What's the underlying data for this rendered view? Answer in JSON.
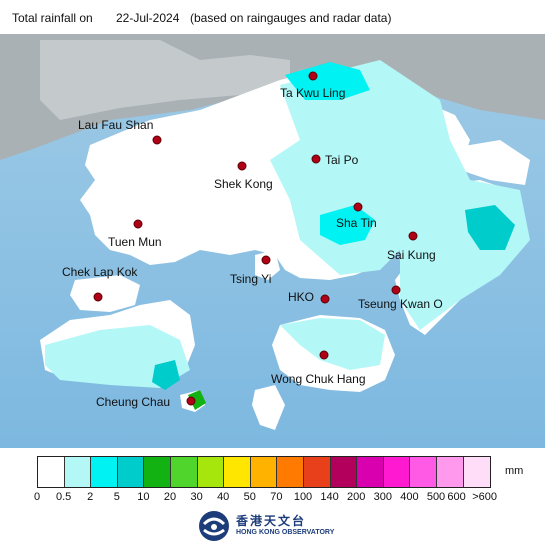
{
  "header": {
    "title": "Total rainfall on",
    "date": "22-Jul-2024",
    "note": "(based on raingauges and radar data)"
  },
  "stations": [
    {
      "name": "Ta Kwu Ling"
    },
    {
      "name": "Lau Fau Shan"
    },
    {
      "name": "Tai Po"
    },
    {
      "name": "Shek Kong"
    },
    {
      "name": "Sha Tin"
    },
    {
      "name": "Tuen Mun"
    },
    {
      "name": "Sai Kung"
    },
    {
      "name": "Tsing Yi"
    },
    {
      "name": "Chek Lap Kok"
    },
    {
      "name": "HKO"
    },
    {
      "name": "Tseung Kwan O"
    },
    {
      "name": "Wong Chuk Hang"
    },
    {
      "name": "Cheung Chau"
    }
  ],
  "legend": {
    "unit": "mm",
    "colors": [
      "#ffffff",
      "#b3f7f7",
      "#00f2f2",
      "#00cccc",
      "#13b213",
      "#4fd52b",
      "#a6e60d",
      "#ffe600",
      "#ffb300",
      "#ff7a00",
      "#e8401a",
      "#b3005c",
      "#d900b0",
      "#ff19d0",
      "#ff5ae6",
      "#ff99ee",
      "#ffdcf8"
    ],
    "ticks": [
      "0",
      "0.5",
      "2",
      "5",
      "10",
      "20",
      "30",
      "40",
      "50",
      "70",
      "100",
      "140",
      "200",
      "300",
      "400",
      "500",
      "600",
      ">600"
    ]
  },
  "logo": {
    "chinese": "香港天文台",
    "english": "HONG KONG OBSERVATORY"
  }
}
